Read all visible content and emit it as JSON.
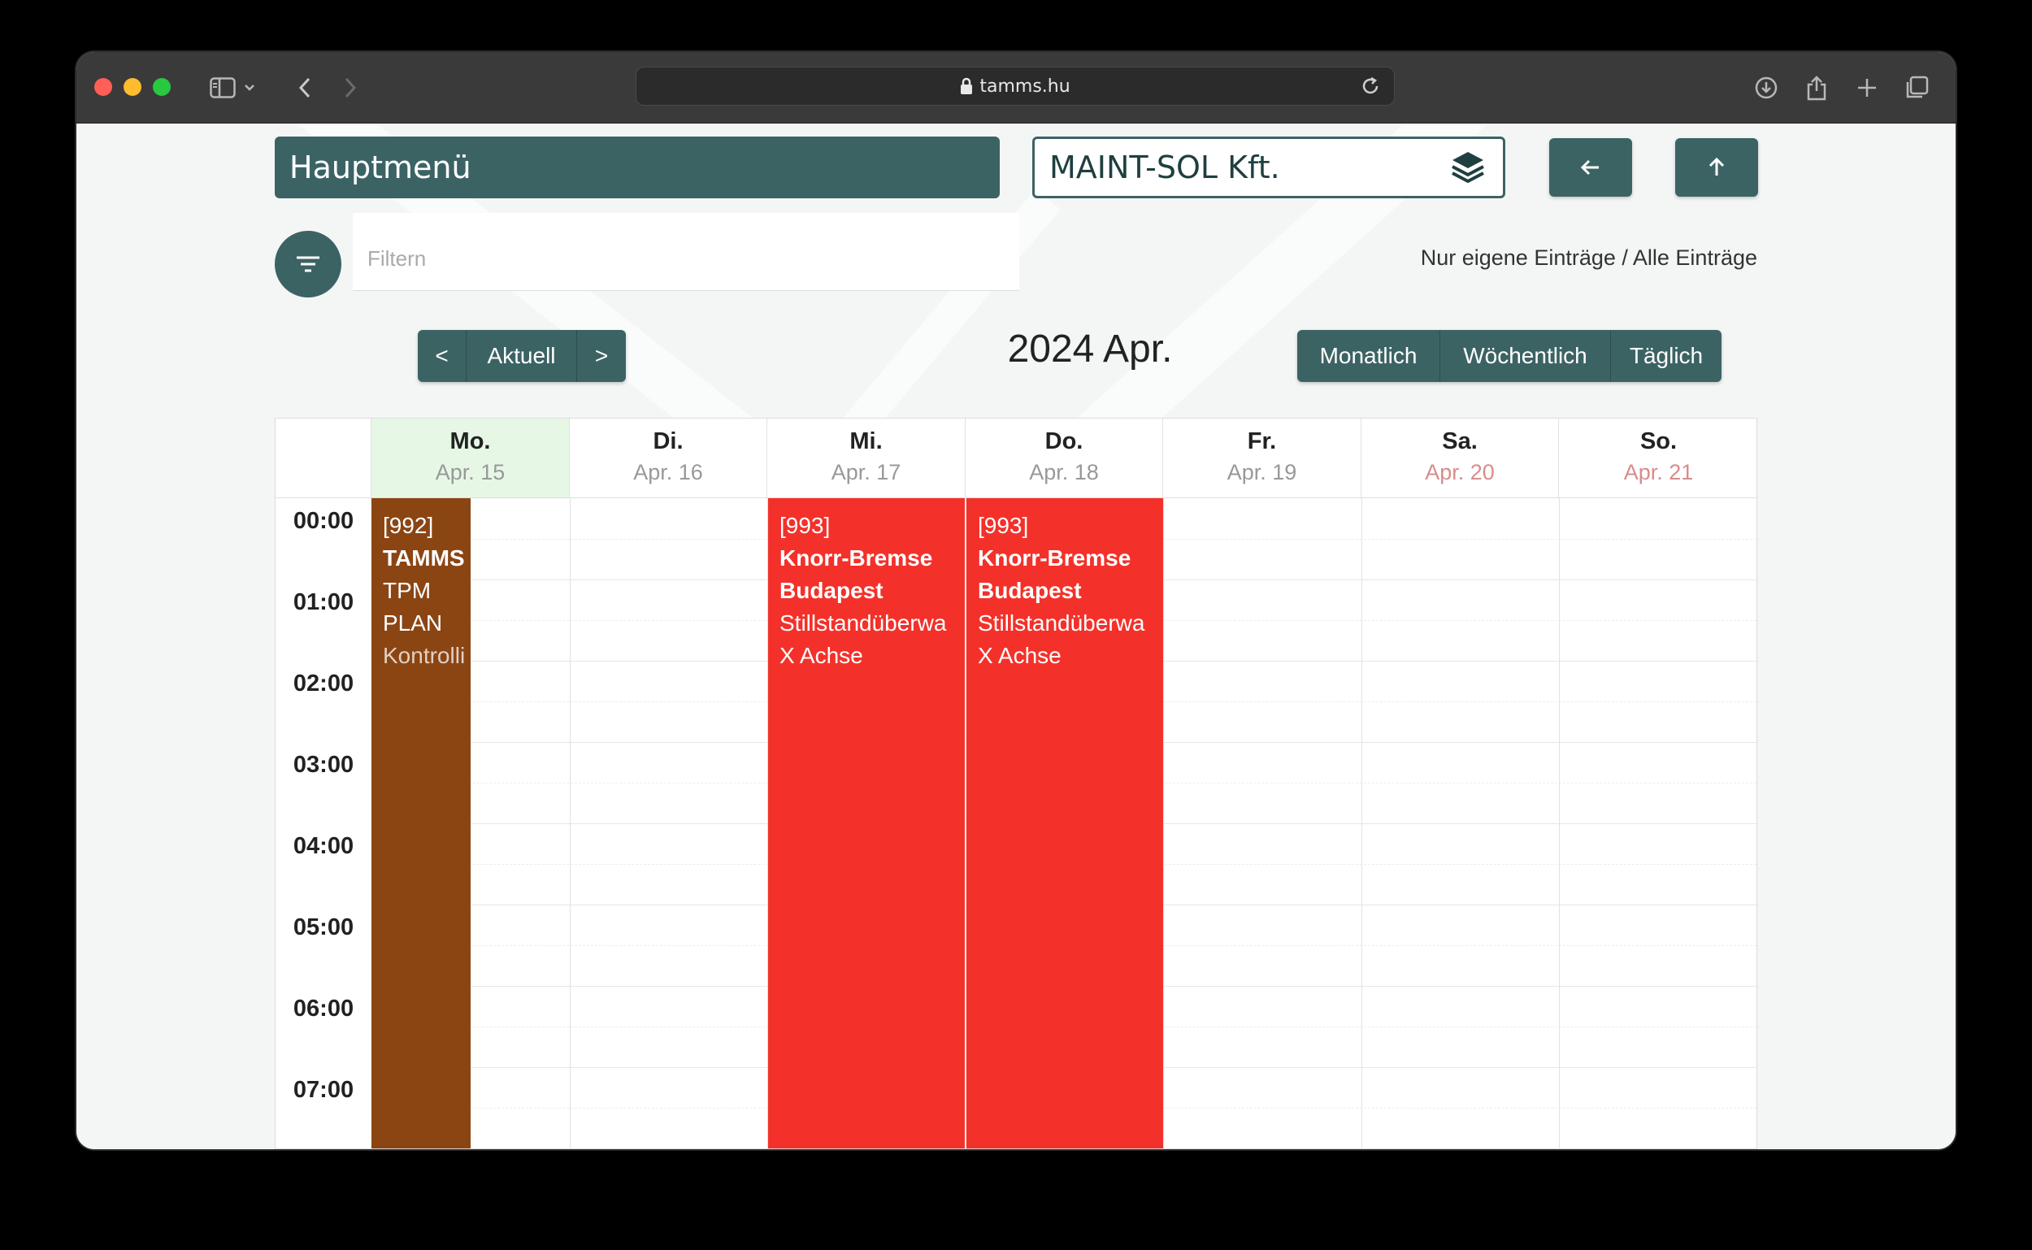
{
  "browser": {
    "url": "tamms.hu"
  },
  "header": {
    "main_menu": "Hauptmenü",
    "company": "MAINT-SOL Kft."
  },
  "filter": {
    "placeholder": "Filtern",
    "entries_toggle": "Nur eigene Einträge / Alle Einträge"
  },
  "nav": {
    "prev": "<",
    "current": "Aktuell",
    "next": ">"
  },
  "period_title": "2024 Apr.",
  "views": {
    "monthly": "Monatlich",
    "weekly": "Wöchentlich",
    "daily": "Täglich"
  },
  "days": [
    {
      "name": "Mo.",
      "date": "Apr. 15"
    },
    {
      "name": "Di.",
      "date": "Apr. 16"
    },
    {
      "name": "Mi.",
      "date": "Apr. 17"
    },
    {
      "name": "Do.",
      "date": "Apr. 18"
    },
    {
      "name": "Fr.",
      "date": "Apr. 19"
    },
    {
      "name": "Sa.",
      "date": "Apr. 20"
    },
    {
      "name": "So.",
      "date": "Apr. 21"
    }
  ],
  "hours": [
    "00:00",
    "01:00",
    "02:00",
    "03:00",
    "04:00",
    "05:00",
    "06:00",
    "07:00"
  ],
  "events": [
    {
      "id": "[992]",
      "title": "TAMMS",
      "lines": [
        "TPM",
        "PLAN",
        "Kontrolli"
      ],
      "color": "#8b4513"
    },
    {
      "id": "[993]",
      "title": "Knorr-Bremse",
      "title2": "Budapest",
      "lines": [
        "Stillstandüberwa",
        "X Achse"
      ],
      "color": "#f3312a"
    },
    {
      "id": "[993]",
      "title": "Knorr-Bremse",
      "title2": "Budapest",
      "lines": [
        "Stillstandüberwa",
        "X Achse"
      ],
      "color": "#f3312a"
    }
  ],
  "colors": {
    "accent": "#3c6364",
    "today_bg": "#e6f7e6",
    "weekend_date": "#d88c8c"
  }
}
